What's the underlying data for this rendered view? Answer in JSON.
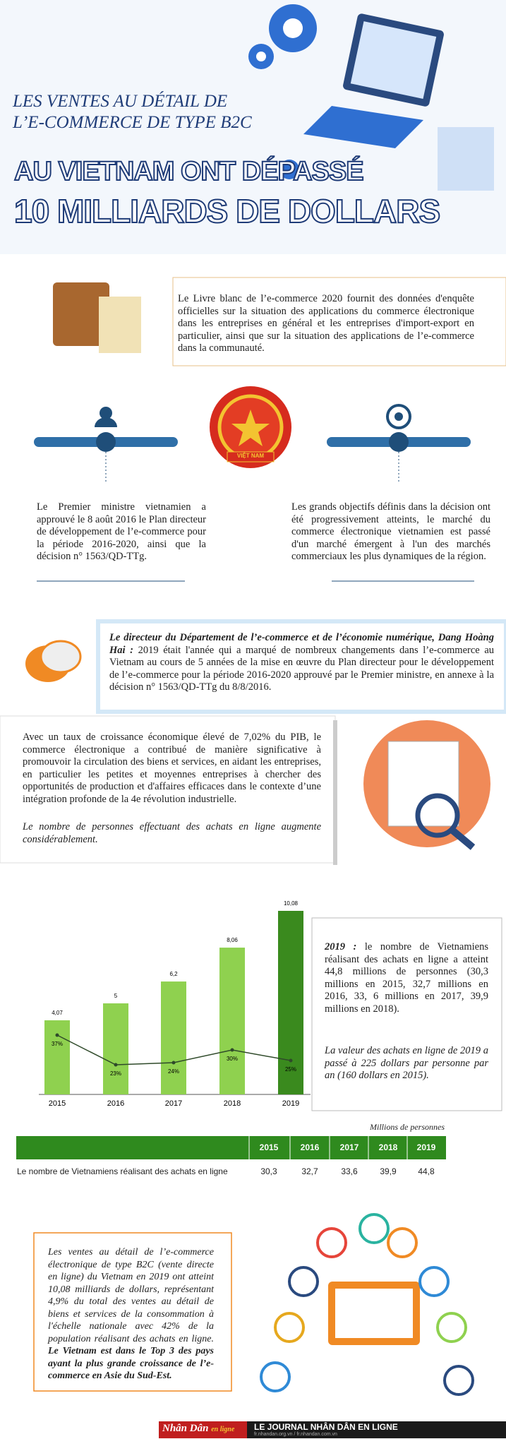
{
  "header": {
    "title_lines": [
      "LES VENTES AU DÉTAIL DE",
      "L’E-COMMERCE DE TYPE B2C",
      "AU VIETNAM ONT DÉPASSÉ",
      "10 MILLIARDS DE DOLLARS"
    ]
  },
  "intro": "Le Livre blanc de l’e-commerce 2020 fournit des données d'enquête officielles sur la situation des applications du commerce électronique dans les entreprises en général et les entreprises d'import-export en particulier, ainsi que sur la situation des applications de l’e-commerce dans la communauté.",
  "emblem": "VIỆT NAM",
  "columns": [
    "Le Premier ministre vietnamien a approuvé le 8 août 2016 le Plan directeur de développement de l’e-commerce pour la période 2016-2020, ainsi que la décision n° 1563/QD-TTg.",
    "Les grands objectifs définis dans la décision ont été progressivement atteints, le marché du commerce électronique vietnamien est passé d'un marché émergent à l'un des marchés commerciaux les plus dynamiques de la région."
  ],
  "quote": {
    "speaker": "Le directeur du Département de l’e-commerce et de l’économie numérique, Dang Hoàng Hai :",
    "text": "2019 était l'année qui a marqué de nombreux changements dans l’e-commerce au Vietnam au cours de 5 années de la mise en œuvre du Plan directeur pour le développement de l’e-commerce pour la période 2016-2020 approuvé par le Premier ministre, en annexe à la décision n° 1563/QD-TTg du 8/8/2016."
  },
  "growth": {
    "text": "Avec un taux de croissance économique élevé de 7,02% du PIB, le commerce électronique a contribué de manière significative à promouvoir la circulation des biens et services, en aidant les entreprises, en particulier les petites et moyennes entreprises à chercher des opportunités de production et d'affaires efficaces dans le contexte d’une intégration profonde de la 4e révolution industrielle.",
    "note": "Le nombre de personnes effectuant des achats en ligne augmente considérablement."
  },
  "chart_data": {
    "type": "bar",
    "categories": [
      "2015",
      "2016",
      "2017",
      "2018",
      "2019"
    ],
    "values": [
      4.07,
      5,
      6.2,
      8.06,
      10.08
    ],
    "value_labels": [
      "4,07",
      "5",
      "6,2",
      "8,06",
      "10,08"
    ],
    "colors": [
      "#8fd14f",
      "#8fd14f",
      "#8fd14f",
      "#8fd14f",
      "#3a8a1e"
    ],
    "line": {
      "type": "line",
      "color": "#2f4a2a",
      "values": [
        37,
        23,
        24,
        30,
        25
      ],
      "value_labels": [
        "37%",
        "23%",
        "24%",
        "30%",
        "25%"
      ]
    }
  },
  "side": {
    "lead": "2019 :",
    "text": " le nombre de Vietnamiens réalisant des achats en ligne a atteint 44,8 millions de personnes (30,3 millions en 2015, 32,7 millions en 2016, 33, 6 millions en 2017, 39,9 millions en 2018).",
    "note": "La valeur des achats en ligne de 2019 a passé à 225 dollars par personne par an (160 dollars en 2015)."
  },
  "table": {
    "caption": "Millions de personnes",
    "header": [
      "2015",
      "2016",
      "2017",
      "2018",
      "2019"
    ],
    "row_label": "Le nombre de Vietnamiens réalisant des achats en ligne",
    "row": [
      "30,3",
      "32,7",
      "33,6",
      "39,9",
      "44,8"
    ]
  },
  "conclusion": {
    "text": "Les ventes au détail de l’e-commerce électronique de type B2C (vente directe en ligne) du Vietnam en 2019 ont atteint 10,08 milliards de dollars, représentant 4,9% du total des ventes au détail de biens et services de la consommation à l'échelle nationale avec 42% de la population réalisant des achats en ligne.",
    "bold": " Le Vietnam est dans le Top 3 des pays ayant la plus grande croissance de l’e-commerce en Asie du Sud-Est."
  },
  "footer": {
    "logo": "Nhân Dân",
    "logo_sub": "en ligne",
    "name": "LE JOURNAL NHÂN DÂN EN LIGNE",
    "urls": "fr.nhandan.org.vn / fr.nhandan.com.vn"
  }
}
